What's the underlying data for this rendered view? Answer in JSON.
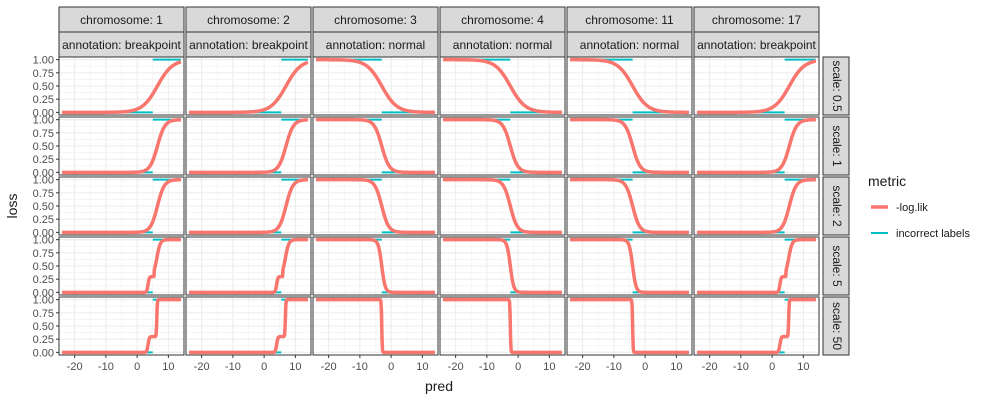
{
  "chart_data": {
    "type": "line",
    "xlabel": "pred",
    "ylabel": "loss",
    "xlim": [
      -25,
      15
    ],
    "ylim": [
      0,
      1
    ],
    "x_ticks": [
      -20,
      -10,
      0,
      10
    ],
    "x_tick_labels": [
      "-20",
      "-10",
      "0",
      "10"
    ],
    "y_ticks": [
      0,
      0.25,
      0.5,
      0.75,
      1
    ],
    "y_tick_labels": [
      "0.00",
      "0.25",
      "0.50",
      "0.75",
      "1.00"
    ],
    "grid": true,
    "facet_cols": [
      {
        "chromosome": "chromosome: 1",
        "annotation": "annotation: breakpoint",
        "kind": "breakpoint",
        "offset": 0
      },
      {
        "chromosome": "chromosome: 2",
        "annotation": "annotation: breakpoint",
        "kind": "breakpoint",
        "offset": 0.5
      },
      {
        "chromosome": "chromosome: 3",
        "annotation": "annotation: normal",
        "kind": "normal",
        "offset": 0
      },
      {
        "chromosome": "chromosome: 4",
        "annotation": "annotation: normal",
        "kind": "normal",
        "offset": 0.5
      },
      {
        "chromosome": "chromosome: 11",
        "annotation": "annotation: normal",
        "kind": "normal",
        "offset": -1
      },
      {
        "chromosome": "chromosome: 17",
        "annotation": "annotation: breakpoint",
        "kind": "breakpoint",
        "offset": -1
      }
    ],
    "facet_rows": [
      {
        "label": "scale: 0.5",
        "scale": 0.5
      },
      {
        "label": "scale: 1",
        "scale": 1
      },
      {
        "label": "scale: 2",
        "scale": 2
      },
      {
        "label": "scale: 5",
        "scale": 5
      },
      {
        "label": "scale: 50",
        "scale": 50
      }
    ],
    "legend": {
      "title": "metric",
      "position": "right",
      "entries": [
        {
          "label": "-log.lik",
          "color": "#F8766D"
        },
        {
          "label": "incorrect labels",
          "color": "#00BFC4"
        }
      ]
    }
  }
}
